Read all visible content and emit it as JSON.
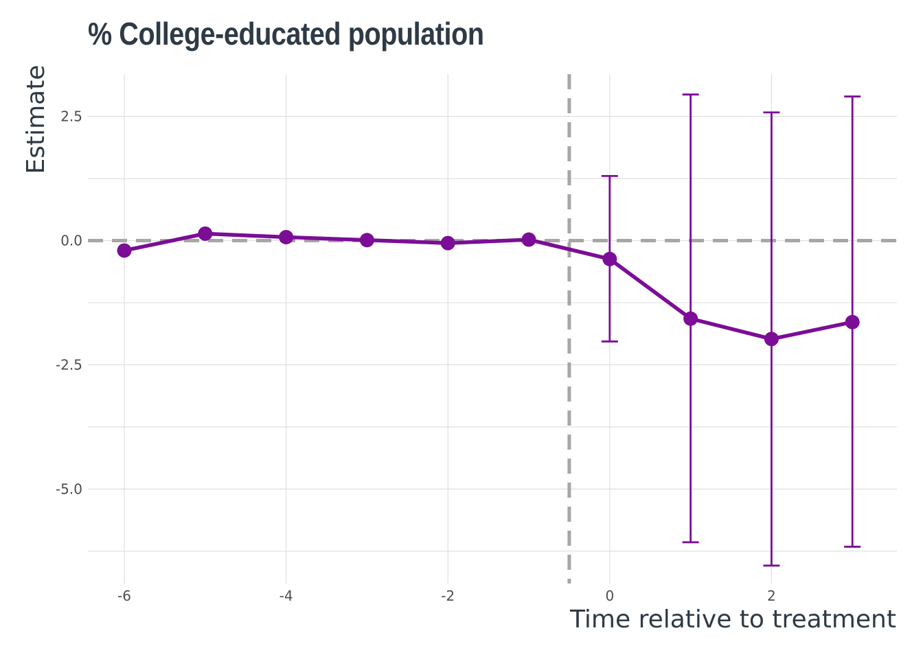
{
  "chart_data": {
    "type": "line",
    "title": "% College-educated population",
    "xlabel": "Time relative to treatment",
    "ylabel": "Estimate",
    "xlim": [
      -6.45,
      3.55
    ],
    "ylim": [
      -6.9,
      3.35
    ],
    "x_ticks": [
      -6,
      -4,
      -2,
      0,
      2
    ],
    "x_tick_labels": [
      "-6",
      "-4",
      "-2",
      "0",
      "2"
    ],
    "y_ticks": [
      2.5,
      0.0,
      -2.5,
      -5.0
    ],
    "y_tick_labels": [
      "2.5",
      "0.0",
      "-2.5",
      "-5.0"
    ],
    "grid": true,
    "reference_lines": {
      "horizontal_y": 0,
      "vertical_x": -0.5
    },
    "series": [
      {
        "x": [
          -6,
          -5,
          -4,
          -3,
          -2,
          -1,
          0,
          1,
          2,
          3
        ],
        "y": [
          -0.2,
          0.14,
          0.07,
          0.01,
          -0.05,
          0.02,
          -0.37,
          -1.57,
          -1.98,
          -1.64
        ],
        "ci_low": [
          null,
          null,
          null,
          null,
          null,
          null,
          -2.03,
          -6.07,
          -6.54,
          -6.16
        ],
        "ci_high": [
          null,
          null,
          null,
          null,
          null,
          null,
          1.3,
          2.94,
          2.58,
          2.9
        ],
        "color": "#7b0d96"
      }
    ]
  }
}
